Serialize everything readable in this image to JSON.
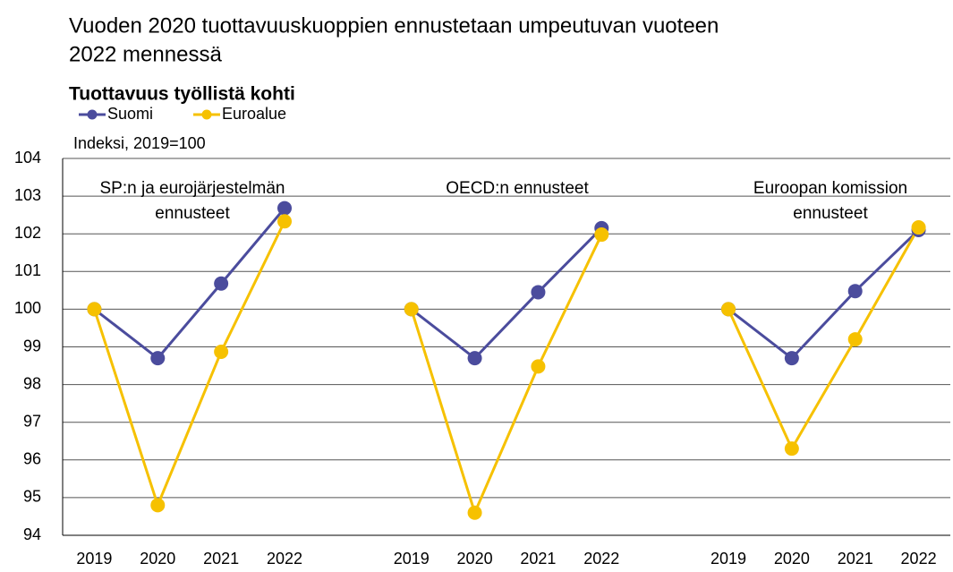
{
  "chart_data": {
    "type": "line",
    "title": [
      "Vuoden 2020 tuottavuuskuoppien ennustetaan umpeutuvan vuoteen",
      "2022 mennessä"
    ],
    "subtitle": "Tuottavuus työllistä kohti",
    "y_label": "Indeksi, 2019=100",
    "ylim": [
      94,
      104
    ],
    "yticks": [
      94,
      95,
      96,
      97,
      98,
      99,
      100,
      101,
      102,
      103,
      104
    ],
    "grid": true,
    "legend": "top-left",
    "panels": [
      {
        "label": [
          "SP:n ja eurojärjestelmän",
          "ennusteet"
        ],
        "categories": [
          "2019",
          "2020",
          "2021",
          "2022"
        ]
      },
      {
        "label": [
          "OECD:n ennusteet"
        ],
        "categories": [
          "2019",
          "2020",
          "2021",
          "2022"
        ]
      },
      {
        "label": [
          "Euroopan komission",
          "ennusteet"
        ],
        "categories": [
          "2019",
          "2020",
          "2021",
          "2022"
        ]
      }
    ],
    "series": [
      {
        "name": "Suomi",
        "color": "#4b4c9d",
        "values": [
          [
            100,
            98.7,
            100.68,
            102.68
          ],
          [
            100,
            98.7,
            100.45,
            102.15
          ],
          [
            100,
            98.7,
            100.48,
            102.1
          ]
        ]
      },
      {
        "name": "Euroalue",
        "color": "#f6c100",
        "values": [
          [
            100,
            94.8,
            98.87,
            102.33
          ],
          [
            100,
            94.6,
            98.48,
            101.98
          ],
          [
            100,
            96.3,
            99.2,
            102.17
          ]
        ]
      }
    ]
  }
}
